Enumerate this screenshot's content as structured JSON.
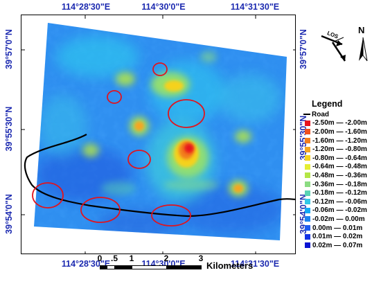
{
  "map": {
    "top_longitudes": [
      "114°28'30\"E",
      "114°30'0\"E",
      "114°31'30\"E"
    ],
    "bottom_longitudes": [
      "114°28'30\"E",
      "114°30'0\"E",
      "114°31'30\"E"
    ],
    "left_latitudes": [
      "39°57'0\"N",
      "39°55'30\"N",
      "39°54'0\"N"
    ],
    "right_latitudes": [
      "39°57'0\"N",
      "39°55'30\"N",
      "39°54'0\"N"
    ],
    "label_color": "#1c2ab0",
    "road_color": "#000000",
    "circle_color": "#e0141e",
    "circle_count": 9
  },
  "legend": {
    "title": "Legend",
    "road_label": "Road",
    "classes": [
      {
        "label": "-2.50m — -2.00m",
        "color": "#e8141e"
      },
      {
        "label": "-2.00m — -1.60m",
        "color": "#f0501e"
      },
      {
        "label": "-1.60m — -1.20m",
        "color": "#f27d1e"
      },
      {
        "label": "-1.20m — -0.80m",
        "color": "#f5a623"
      },
      {
        "label": "-0.80m — -0.64m",
        "color": "#f5d21e"
      },
      {
        "label": "-0.64m — -0.48m",
        "color": "#e6ee32"
      },
      {
        "label": "-0.48m — -0.36m",
        "color": "#b4e646"
      },
      {
        "label": "-0.36m — -0.18m",
        "color": "#8cdc82"
      },
      {
        "label": "-0.18m — -0.12m",
        "color": "#5ad2b4"
      },
      {
        "label": "-0.12m — -0.06m",
        "color": "#32c8e6"
      },
      {
        "label": "-0.06m — -0.02m",
        "color": "#14aaf5"
      },
      {
        "label": "-0.02m — 0.00m",
        "color": "#1e82f0"
      },
      {
        "label": "0.00m — 0.01m",
        "color": "#1e5af0"
      },
      {
        "label": "0.01m — 0.02m",
        "color": "#1432e6"
      },
      {
        "label": "0.02m — 0.07m",
        "color": "#0a14d2"
      }
    ]
  },
  "scalebar": {
    "ticks": [
      "0",
      ".5",
      "1",
      "2",
      "3"
    ],
    "unit": "Kilometers"
  },
  "compass": {
    "los_label": "LOS",
    "north_label": "N"
  }
}
